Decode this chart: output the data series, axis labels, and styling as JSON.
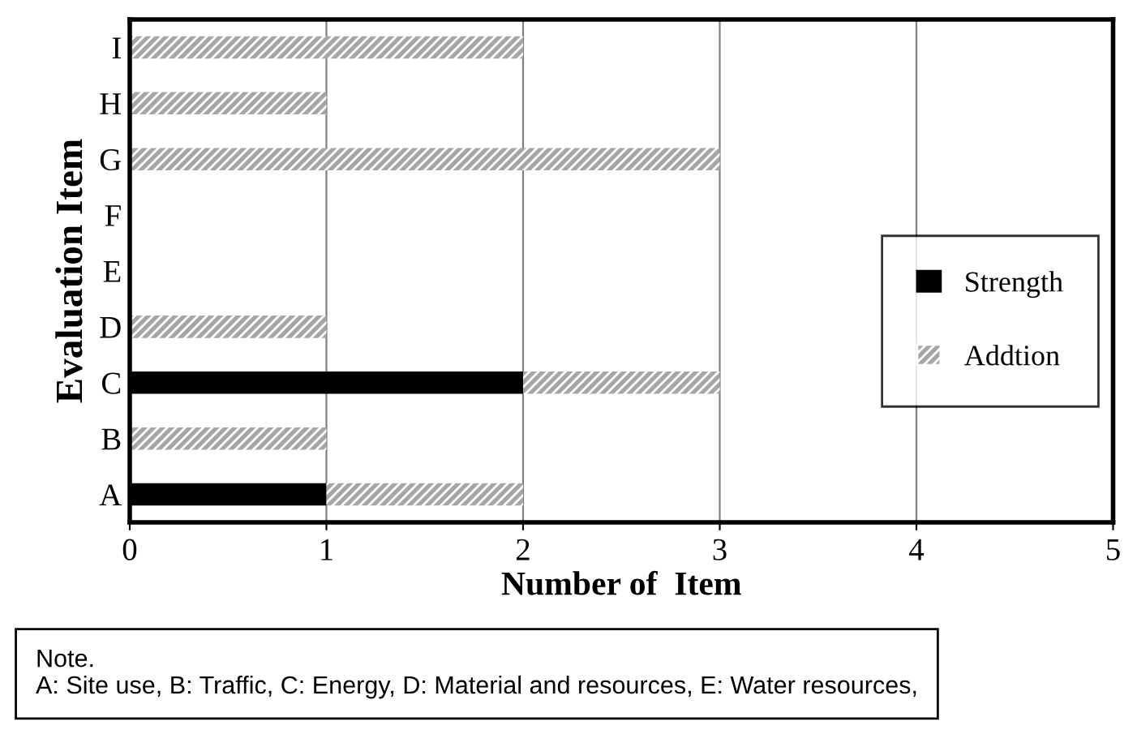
{
  "chart_data": {
    "type": "bar",
    "orientation": "horizontal",
    "stacked": true,
    "categories": [
      "I",
      "H",
      "G",
      "F",
      "E",
      "D",
      "C",
      "B",
      "A"
    ],
    "series": [
      {
        "name": "Strength",
        "color": "#000000",
        "values": [
          0,
          0,
          0,
          0,
          0,
          0,
          2,
          0,
          1
        ]
      },
      {
        "name": "Addtion",
        "color": "#a6a6a6",
        "values": [
          2,
          1,
          3,
          0,
          0,
          1,
          1,
          1,
          1
        ]
      }
    ],
    "xlim": [
      0,
      5
    ],
    "xticks": [
      0,
      1,
      2,
      3,
      4,
      5
    ],
    "grid": "x",
    "legend": "right",
    "xlabel": "Number of  Item",
    "ylabel": "Evaluation Item",
    "annotations": [
      "Note.\nA: Site use, B: Traffic, C: Energy, D: Material and resources, E: Water resources,"
    ]
  }
}
